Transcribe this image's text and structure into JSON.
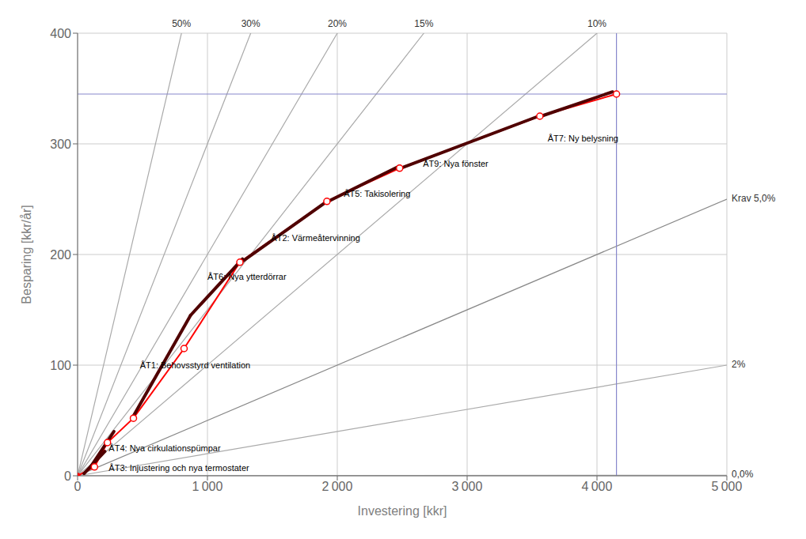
{
  "chart_data": {
    "type": "line",
    "xlabel": "Investering [kkr]",
    "ylabel": "Besparing [kkr/år]",
    "xlim": [
      0,
      5000
    ],
    "ylim": [
      0,
      400
    ],
    "xticks": [
      0,
      {
        "value": 1000,
        "label": "1 000"
      },
      {
        "value": 2000,
        "label": "2 000"
      },
      {
        "value": 3000,
        "label": "3 000"
      },
      {
        "value": 4000,
        "label": "4 000"
      },
      {
        "value": 5000,
        "label": "5 000"
      }
    ],
    "yticks": [
      0,
      100,
      200,
      300,
      400
    ],
    "grid": true,
    "series": [
      {
        "name": "50%",
        "color": "#aaaaaa",
        "x": [
          0,
          800
        ],
        "values": [
          0,
          400
        ]
      },
      {
        "name": "30%",
        "color": "#aaaaaa",
        "x": [
          0,
          1333.3333333333333
        ],
        "values": [
          0,
          400
        ]
      },
      {
        "name": "20%",
        "color": "#aaaaaa",
        "x": [
          0,
          2000
        ],
        "values": [
          0,
          400
        ]
      },
      {
        "name": "15%",
        "color": "#aaaaaa",
        "x": [
          0,
          2666.6666666666665
        ],
        "values": [
          0,
          400
        ]
      },
      {
        "name": "10%",
        "color": "#aaaaaa",
        "x": [
          0,
          4000
        ],
        "values": [
          0,
          400
        ]
      },
      {
        "name": "2%",
        "color": "#aaaaaa",
        "x": [
          0,
          5000
        ],
        "values": [
          0,
          100
        ]
      },
      {
        "name": "Krav 5,0%",
        "color": "#888888",
        "x": [
          0,
          5000
        ],
        "values": [
          0,
          250
        ]
      },
      {
        "name": "0,0%",
        "color": "#aaaaaa",
        "x": [
          0,
          5000
        ],
        "values": [
          0,
          0.5
        ]
      },
      {
        "color": "#8888cc",
        "x": [
          0,
          5000
        ],
        "values": [
          345,
          345
        ]
      },
      {
        "color": "#8888cc",
        "x": [
          4150,
          4150
        ],
        "values": [
          0,
          400
        ]
      },
      {
        "color": "#ff0000",
        "marker": "o",
        "x": [
          0,
          130,
          230,
          430,
          820,
          1250,
          1920,
          2480,
          3560,
          4150
        ],
        "values": [
          0,
          8,
          30,
          52,
          115,
          193,
          248,
          278,
          325,
          345
        ]
      },
      {
        "color": "#500000",
        "x": [
          50,
          210
        ],
        "values": [
          2,
          22
        ]
      },
      {
        "color": "#500000",
        "x": [
          100,
          280
        ],
        "values": [
          8,
          40
        ]
      },
      {
        "color": "#500000",
        "x": [
          420,
          870
        ],
        "values": [
          52,
          145
        ]
      },
      {
        "color": "#500000",
        "x": [
          870,
          1270
        ],
        "values": [
          145,
          196
        ]
      },
      {
        "color": "#500000",
        "x": [
          1260,
          1920
        ],
        "values": [
          193,
          248
        ]
      },
      {
        "color": "#500000",
        "x": [
          1930,
          2480
        ],
        "values": [
          248,
          280
        ]
      },
      {
        "color": "#500000",
        "x": [
          2490,
          3550
        ],
        "values": [
          278,
          325
        ]
      },
      {
        "color": "#500000",
        "x": [
          3570,
          4120
        ],
        "values": [
          325,
          347
        ]
      }
    ],
    "annotations": [
      {
        "x": 240,
        "y": 12,
        "text": "ÅT3: Injustering och nya termostater"
      },
      {
        "x": 240,
        "y": 30,
        "text": "ÅT4: Nya cirkulationspümpar"
      },
      {
        "x": 480,
        "y": 105,
        "text": "ÅT1: Behovsstyrd ventilation"
      },
      {
        "x": 1000,
        "y": 185,
        "text": "ÅT6: Nya ytterdörrar"
      },
      {
        "x": 1490,
        "y": 220,
        "text": "ÅT2: Värmeåtervinning"
      },
      {
        "x": 2050,
        "y": 260,
        "text": "ÅT5: Takisolering"
      },
      {
        "x": 2660,
        "y": 287,
        "text": "ÅT9: Nya fönster"
      },
      {
        "x": 3620,
        "y": 310,
        "text": "ÅT7: Ny belysning"
      }
    ]
  }
}
